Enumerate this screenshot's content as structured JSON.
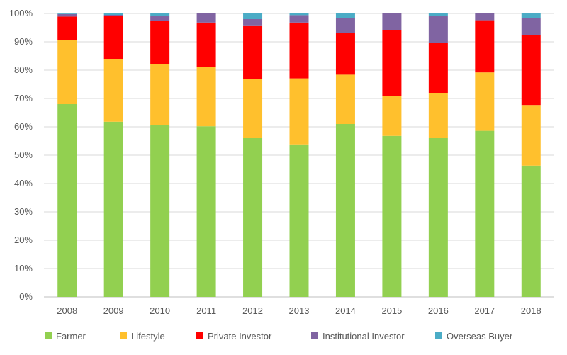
{
  "chart_data": {
    "type": "bar",
    "stacked": "percent",
    "categories": [
      "2008",
      "2009",
      "2010",
      "2011",
      "2012",
      "2013",
      "2014",
      "2015",
      "2016",
      "2017",
      "2018"
    ],
    "series": [
      {
        "name": "Farmer",
        "color": "#92d050",
        "values": [
          68,
          61.8,
          60.7,
          60.2,
          56,
          53.8,
          61,
          56.8,
          56,
          58.6,
          46.3
        ]
      },
      {
        "name": "Lifestyle",
        "color": "#ffc02d",
        "values": [
          22.5,
          22.2,
          21.5,
          21,
          20.9,
          23.3,
          17.4,
          14.2,
          16,
          20.6,
          21.4
        ]
      },
      {
        "name": "Private Investor",
        "color": "#ff0000",
        "values": [
          8.4,
          15,
          15.1,
          15.6,
          18.9,
          19.7,
          14.8,
          23.2,
          17.6,
          18.4,
          24.7
        ]
      },
      {
        "name": "Institutional Investor",
        "color": "#8064a2",
        "values": [
          0.9,
          0.5,
          1.9,
          3.2,
          2.2,
          2.6,
          5.3,
          5.8,
          9.4,
          2.4,
          6.1
        ]
      },
      {
        "name": "Overseas Buyer",
        "color": "#4bacc6",
        "values": [
          0.2,
          0.5,
          0.8,
          0,
          2,
          0.6,
          1.5,
          0,
          1,
          0,
          1.5
        ]
      }
    ],
    "ylim": [
      0,
      100
    ],
    "yticks": [
      "0%",
      "10%",
      "20%",
      "30%",
      "40%",
      "50%",
      "60%",
      "70%",
      "80%",
      "90%",
      "100%"
    ],
    "grid": true,
    "legend": "bottom"
  }
}
